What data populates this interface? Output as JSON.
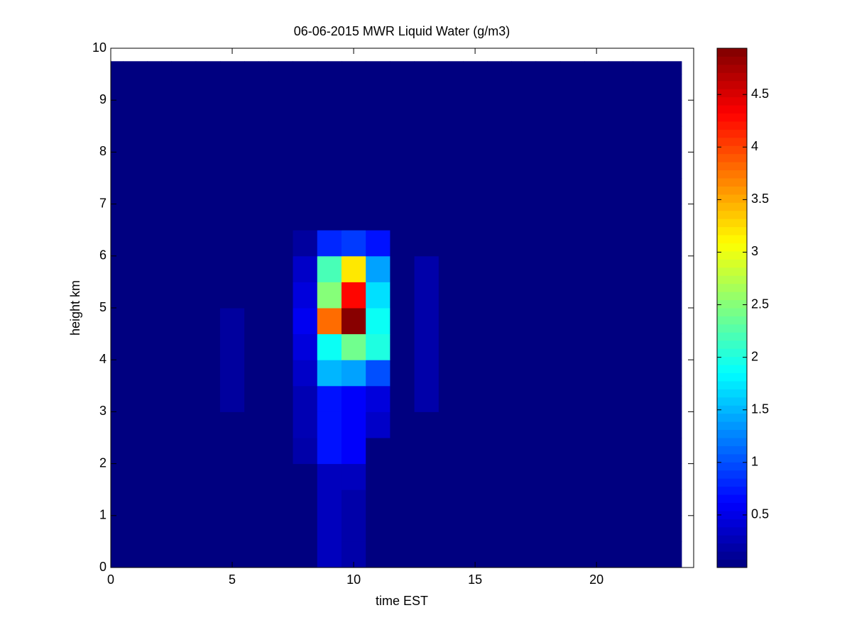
{
  "chart_data": {
    "type": "heatmap",
    "title": "06-06-2015 MWR Liquid Water (g/m3)",
    "x_label": "time EST",
    "y_label": "height km",
    "x_edges": [
      0,
      0.5,
      1.5,
      2.5,
      3.5,
      4.5,
      5.5,
      6.5,
      7.5,
      8.5,
      9.5,
      10.5,
      11.5,
      12.5,
      13.5,
      14.5,
      15.5,
      16.5,
      17.5,
      18.5,
      19.5,
      20.5,
      21.5,
      22.5,
      23.5
    ],
    "y_edges": [
      0,
      0.5,
      1,
      1.5,
      2,
      2.5,
      3,
      3.5,
      4,
      4.5,
      5,
      5.5,
      6,
      6.5,
      7,
      7.5,
      8,
      8.5,
      9,
      9.5,
      9.75
    ],
    "z": [
      [
        0,
        0,
        0,
        0,
        0,
        0,
        0,
        0,
        0,
        0.3,
        0.2,
        0,
        0,
        0,
        0,
        0,
        0,
        0,
        0,
        0,
        0,
        0,
        0,
        0
      ],
      [
        0,
        0,
        0,
        0,
        0,
        0,
        0,
        0,
        0,
        0.3,
        0.2,
        0,
        0,
        0,
        0,
        0,
        0,
        0,
        0,
        0,
        0,
        0,
        0,
        0
      ],
      [
        0,
        0,
        0,
        0,
        0,
        0,
        0,
        0,
        0,
        0.3,
        0.2,
        0,
        0,
        0,
        0,
        0,
        0,
        0,
        0,
        0,
        0,
        0,
        0,
        0
      ],
      [
        0,
        0,
        0,
        0,
        0,
        0,
        0,
        0,
        0,
        0.3,
        0.3,
        0,
        0,
        0,
        0,
        0,
        0,
        0,
        0,
        0,
        0,
        0,
        0,
        0
      ],
      [
        0,
        0,
        0,
        0,
        0,
        0,
        0,
        0,
        0.2,
        0.7,
        0.6,
        0,
        0,
        0,
        0,
        0,
        0,
        0,
        0,
        0,
        0,
        0,
        0,
        0
      ],
      [
        0,
        0,
        0,
        0,
        0,
        0,
        0,
        0,
        0.25,
        0.7,
        0.6,
        0.35,
        0,
        0,
        0,
        0,
        0,
        0,
        0,
        0,
        0,
        0,
        0,
        0
      ],
      [
        0,
        0,
        0,
        0,
        0,
        0.15,
        0,
        0,
        0.25,
        0.7,
        0.6,
        0.45,
        0,
        0.2,
        0,
        0,
        0,
        0,
        0,
        0,
        0,
        0,
        0,
        0
      ],
      [
        0,
        0,
        0,
        0,
        0,
        0.15,
        0,
        0,
        0.35,
        1.5,
        1.4,
        1.0,
        0,
        0.2,
        0,
        0,
        0,
        0,
        0,
        0,
        0,
        0,
        0,
        0
      ],
      [
        0,
        0,
        0,
        0,
        0,
        0.15,
        0,
        0,
        0.45,
        1.9,
        2.4,
        2.0,
        0,
        0.2,
        0,
        0,
        0,
        0,
        0,
        0,
        0,
        0,
        0,
        0
      ],
      [
        0,
        0,
        0,
        0,
        0,
        0.15,
        0,
        0,
        0.55,
        3.8,
        4.9,
        1.9,
        0,
        0.2,
        0,
        0,
        0,
        0,
        0,
        0,
        0,
        0,
        0,
        0
      ],
      [
        0,
        0,
        0,
        0,
        0,
        0,
        0,
        0,
        0.45,
        2.5,
        4.3,
        1.7,
        0,
        0.2,
        0,
        0,
        0,
        0,
        0,
        0,
        0,
        0,
        0,
        0
      ],
      [
        0,
        0,
        0,
        0,
        0,
        0,
        0,
        0,
        0.35,
        2.2,
        3.2,
        1.4,
        0,
        0.2,
        0,
        0,
        0,
        0,
        0,
        0,
        0,
        0,
        0,
        0
      ],
      [
        0,
        0,
        0,
        0,
        0,
        0,
        0,
        0,
        0.15,
        0.8,
        0.9,
        0.7,
        0,
        0,
        0,
        0,
        0,
        0,
        0,
        0,
        0,
        0,
        0,
        0
      ],
      [
        0,
        0,
        0,
        0,
        0,
        0,
        0,
        0,
        0,
        0,
        0,
        0,
        0,
        0,
        0,
        0,
        0,
        0,
        0,
        0,
        0,
        0,
        0,
        0
      ],
      [
        0,
        0,
        0,
        0,
        0,
        0,
        0,
        0,
        0,
        0,
        0,
        0,
        0,
        0,
        0,
        0,
        0,
        0,
        0,
        0,
        0,
        0,
        0,
        0
      ],
      [
        0,
        0,
        0,
        0,
        0,
        0,
        0,
        0,
        0,
        0,
        0,
        0,
        0,
        0,
        0,
        0,
        0,
        0,
        0,
        0,
        0,
        0,
        0,
        0
      ],
      [
        0,
        0,
        0,
        0,
        0,
        0,
        0,
        0,
        0,
        0,
        0,
        0,
        0,
        0,
        0,
        0,
        0,
        0,
        0,
        0,
        0,
        0,
        0,
        0
      ],
      [
        0,
        0,
        0,
        0,
        0,
        0,
        0,
        0,
        0,
        0,
        0,
        0,
        0,
        0,
        0,
        0,
        0,
        0,
        0,
        0,
        0,
        0,
        0,
        0
      ],
      [
        0,
        0,
        0,
        0,
        0,
        0,
        0,
        0,
        0,
        0,
        0,
        0,
        0,
        0,
        0,
        0,
        0,
        0,
        0,
        0,
        0,
        0,
        0,
        0
      ],
      [
        0,
        0,
        0,
        0,
        0,
        0,
        0,
        0,
        0,
        0,
        0,
        0,
        0,
        0,
        0,
        0,
        0,
        0,
        0,
        0,
        0,
        0,
        0,
        0
      ]
    ],
    "colormap": "jet",
    "xlim": [
      0,
      24
    ],
    "xticks": [
      0,
      5,
      10,
      15,
      20
    ],
    "ylim": [
      0,
      10
    ],
    "yticks": [
      0,
      1,
      2,
      3,
      4,
      5,
      6,
      7,
      8,
      9,
      10
    ],
    "clim": [
      0,
      4.94
    ],
    "cticks": [
      0.5,
      1,
      1.5,
      2,
      2.5,
      3,
      3.5,
      4,
      4.5
    ]
  }
}
